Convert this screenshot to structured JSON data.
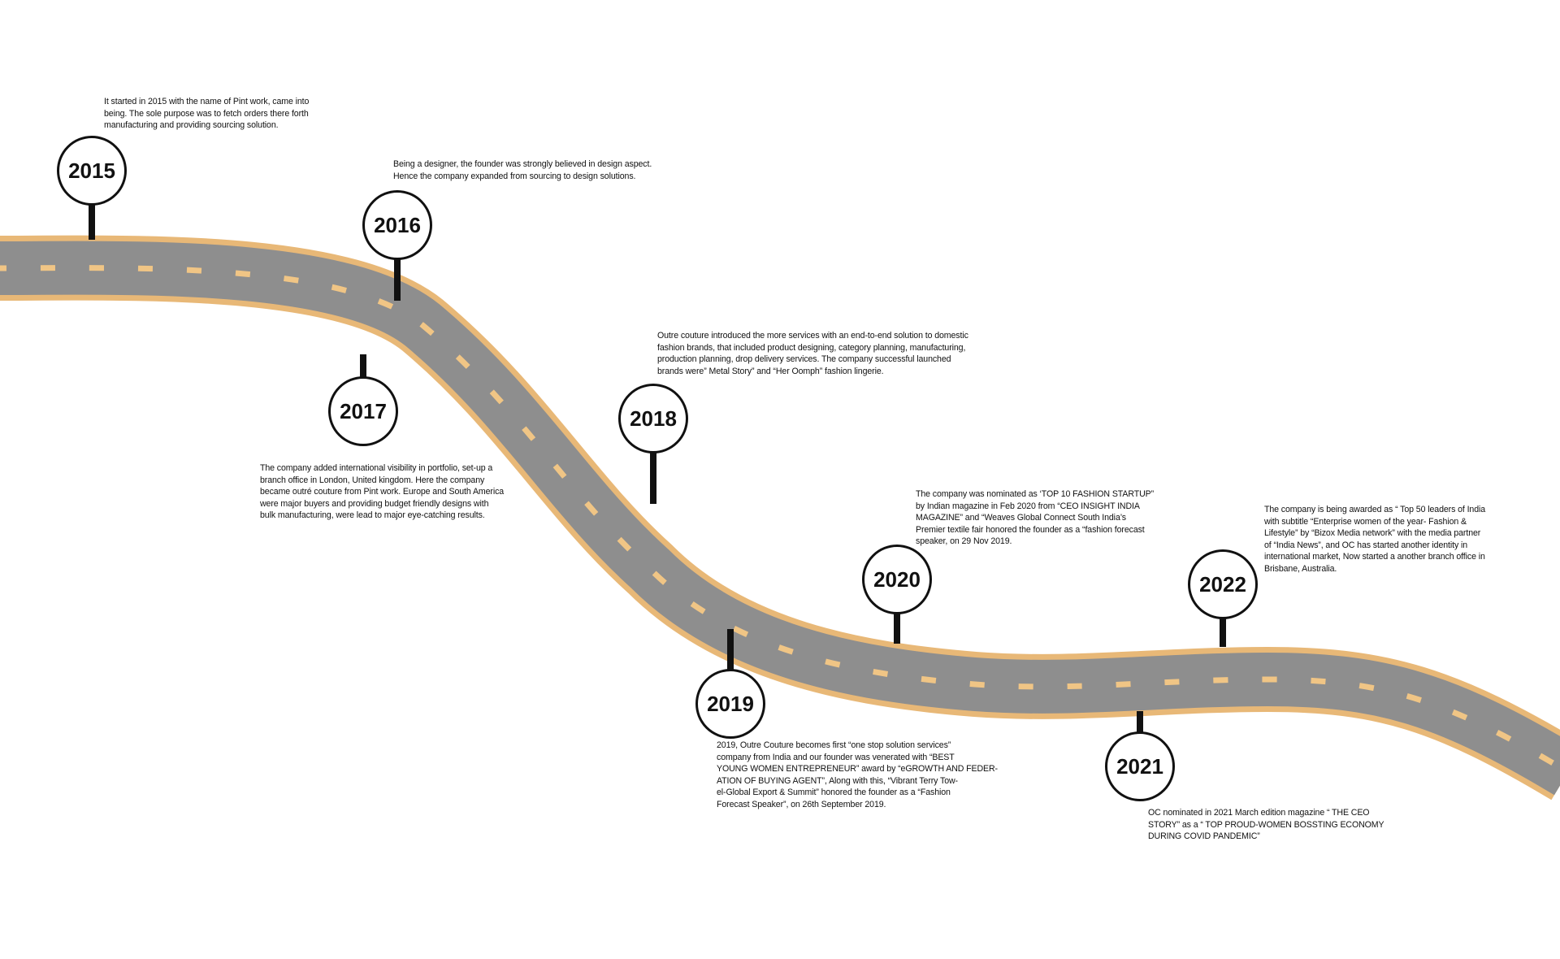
{
  "milestones": [
    {
      "year": "2015",
      "text": "It started in 2015 with the name of Pint work, came into\nbeing. The sole purpose was to fetch orders there forth\nmanufacturing and providing sourcing solution."
    },
    {
      "year": "2016",
      "text": "Being a designer, the founder was strongly believed in design aspect.\nHence the company expanded from sourcing to design solutions."
    },
    {
      "year": "2017",
      "text": "The company added international visibility in portfolio, set-up a\nbranch office in London, United kingdom. Here the company\nbecame outré couture from Pint work. Europe and South America\nwere major buyers and providing budget friendly designs with\nbulk manufacturing, were lead to major eye-catching results."
    },
    {
      "year": "2018",
      "text": "Outre couture introduced the more services with an end-to-end solution to domestic\nfashion brands, that included product designing, category planning, manufacturing,\nproduction planning, drop delivery services. The company successful launched\nbrands were” Metal Story” and “Her Oomph” fashion lingerie."
    },
    {
      "year": "2019",
      "text": "2019, Outre Couture becomes first “one stop solution services”\ncompany from India and our founder was venerated with “BEST\nYOUNG WOMEN ENTREPRENEUR” award by “eGROWTH AND FEDER-\nATION OF BUYING AGENT”, Along with this, “Vibrant Terry Tow-\nel-Global Export & Summit” honored the founder as a “Fashion\nForecast Speaker”, on 26th September 2019."
    },
    {
      "year": "2020",
      "text": "The company was nominated as ‘TOP 10 FASHION STARTUP”\nby Indian magazine in Feb 2020 from “CEO INSIGHT INDIA\nMAGAZINE” and “Weaves Global Connect South India’s\nPremier textile fair honored the founder as a “fashion forecast\nspeaker, on 29 Nov 2019."
    },
    {
      "year": "2021",
      "text": "OC nominated in 2021 March edition magazine “ THE CEO\nSTORY” as a “ TOP PROUD-WOMEN BOSSTING ECONOMY\nDURING COVID PANDEMIC”"
    },
    {
      "year": "2022",
      "text": "The company is being awarded as “ Top 50 leaders of India\nwith subtitle “Enterprise women of the year- Fashion &\nLifestyle” by “Bizox Media network” with the media partner\nof “India News”, and OC has started another identity in\ninternational market, Now started a another branch office in\nBrisbane, Australia."
    }
  ],
  "colors": {
    "road": "#8e8e8e",
    "road_edge": "#e8b877",
    "lane_marking": "#f0c585",
    "pin": "#111111",
    "background": "#ffffff"
  }
}
